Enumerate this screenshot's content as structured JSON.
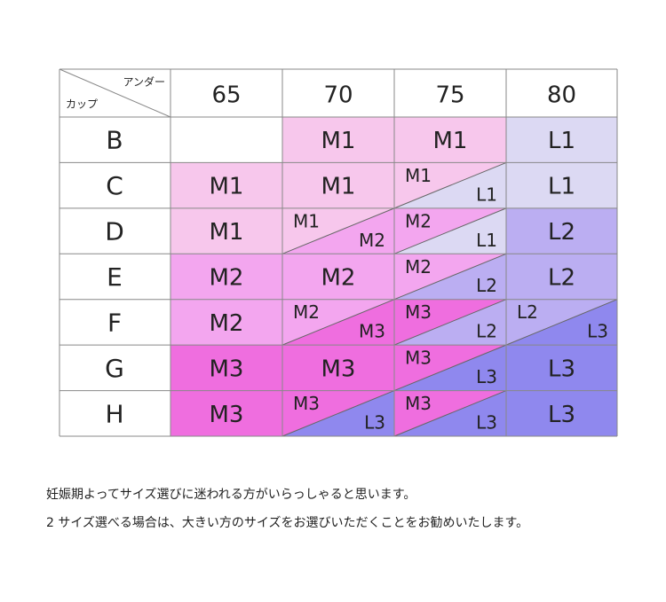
{
  "table": {
    "header": {
      "under": "アンダー",
      "cup": "カップ"
    },
    "columns": [
      "65",
      "70",
      "75",
      "80"
    ],
    "rows": [
      {
        "cup": "B",
        "cells": [
          null,
          [
            "M1"
          ],
          [
            "M1"
          ],
          [
            "L1"
          ]
        ]
      },
      {
        "cup": "C",
        "cells": [
          [
            "M1"
          ],
          [
            "M1"
          ],
          [
            "M1",
            "L1"
          ],
          [
            "L1"
          ]
        ]
      },
      {
        "cup": "D",
        "cells": [
          [
            "M1"
          ],
          [
            "M1",
            "M2"
          ],
          [
            "M2",
            "L1"
          ],
          [
            "L2"
          ]
        ]
      },
      {
        "cup": "E",
        "cells": [
          [
            "M2"
          ],
          [
            "M2"
          ],
          [
            "M2",
            "L2"
          ],
          [
            "L2"
          ]
        ]
      },
      {
        "cup": "F",
        "cells": [
          [
            "M2"
          ],
          [
            "M2",
            "M3"
          ],
          [
            "M3",
            "L2"
          ],
          [
            "L2",
            "L3"
          ]
        ]
      },
      {
        "cup": "G",
        "cells": [
          [
            "M3"
          ],
          [
            "M3"
          ],
          [
            "M3",
            "L3"
          ],
          [
            "L3"
          ]
        ]
      },
      {
        "cup": "H",
        "cells": [
          [
            "M3"
          ],
          [
            "M3",
            "L3"
          ],
          [
            "M3",
            "L3"
          ],
          [
            "L3"
          ]
        ]
      }
    ],
    "colors": {
      "M1": "#f7c7ec",
      "M2": "#f3a6ef",
      "M3": "#ef6edf",
      "L1": "#dcd9f3",
      "L2": "#bbaef2",
      "L3": "#8f88ee"
    }
  },
  "notes": [
    "妊娠期よってサイズ選びに迷われる方がいらっしゃると思います。",
    "2 サイズ選べる場合は、大きい方のサイズをお選びいただくことをお勧めいたします。"
  ]
}
